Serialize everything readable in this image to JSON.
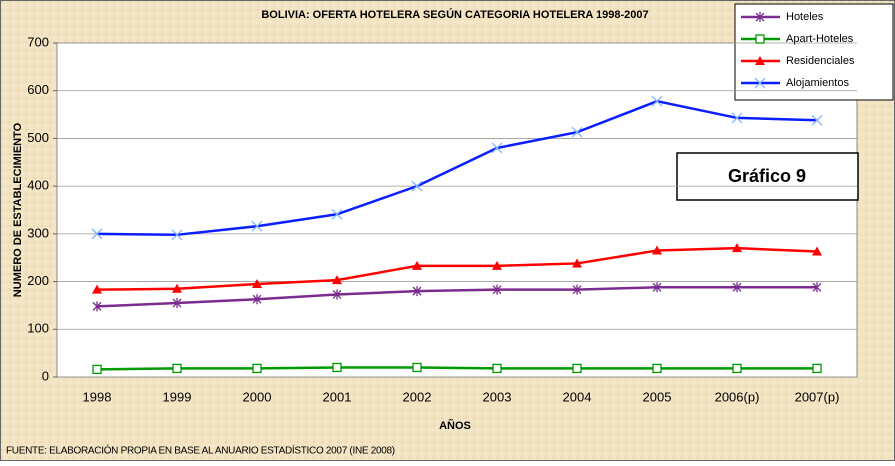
{
  "chart_data": {
    "type": "line",
    "title": "BOLIVIA: OFERTA HOTELERA SEGÚN CATEGORIA HOTELERA 1998-2007",
    "x_label": "AÑOS",
    "y_label": "NUMERO DE ESTABLECIMIENTO",
    "annotation": "Gráfico 9",
    "source": "FUENTE: ELABORACIÓN PROPIA EN BASE AL ANUARIO ESTADÍSTICO 2007 (INE 2008)",
    "categories": [
      "1998",
      "1999",
      "2000",
      "2001",
      "2002",
      "2003",
      "2004",
      "2005",
      "2006(p)",
      "2007(p)"
    ],
    "series": [
      {
        "name": "Hoteles",
        "color": "#7b2c8e",
        "marker": "star",
        "values": [
          148,
          155,
          163,
          173,
          180,
          183,
          183,
          188,
          188,
          188
        ]
      },
      {
        "name": "Apart-Hoteles",
        "color": "#009a00",
        "marker": "square",
        "values": [
          16,
          18,
          18,
          20,
          20,
          18,
          18,
          18,
          18,
          18
        ]
      },
      {
        "name": "Residenciales",
        "color": "#ff0000",
        "marker": "triangle",
        "values": [
          183,
          185,
          195,
          203,
          233,
          233,
          238,
          265,
          270,
          263
        ]
      },
      {
        "name": "Alojamientos",
        "color": "#0a1eff",
        "marker": "x",
        "values": [
          300,
          298,
          316,
          341,
          400,
          480,
          513,
          578,
          543,
          538
        ]
      }
    ],
    "ylim": [
      0,
      700
    ],
    "yticks": [
      0,
      100,
      200,
      300,
      400,
      500,
      600,
      700
    ],
    "grid": true,
    "legend": "top-right"
  }
}
